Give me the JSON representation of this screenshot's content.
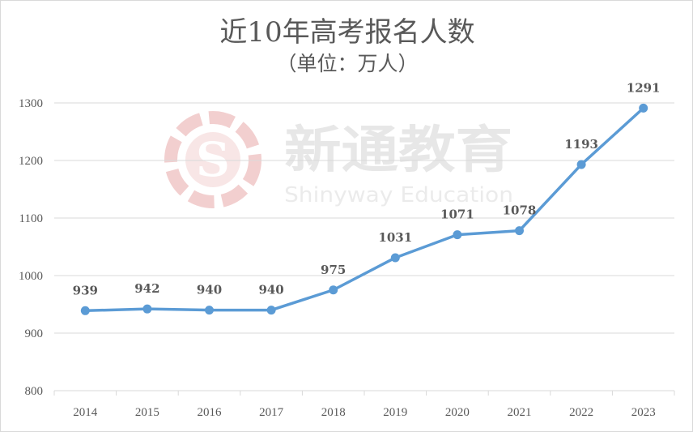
{
  "chart_data": {
    "type": "line",
    "title": "近10年高考报名人数",
    "subtitle": "（单位：万人）",
    "categories": [
      "2014",
      "2015",
      "2016",
      "2017",
      "2018",
      "2019",
      "2020",
      "2021",
      "2022",
      "2023"
    ],
    "values": [
      939,
      942,
      940,
      940,
      975,
      1031,
      1071,
      1078,
      1193,
      1291
    ],
    "data_labels": [
      "939",
      "942",
      "940",
      "940",
      "975",
      "1031",
      "1071",
      "1078",
      "1193",
      "1291"
    ],
    "ylim": [
      800,
      1300
    ],
    "yticks": [
      "800",
      "900",
      "1000",
      "1100",
      "1200",
      "1300"
    ],
    "xlabel": "",
    "ylabel": "",
    "grid": true,
    "legend": "none",
    "colors": {
      "series": "#5b9bd5",
      "grid": "#d9d9d9",
      "text": "#595959",
      "watermark_red": "#e8a8a8",
      "watermark_gray": "#d9d9d9"
    }
  },
  "watermark": {
    "name_cn": "新通教育",
    "name_en": "Shinyway Education",
    "logo_icon": "shinyway-s-logo-icon"
  }
}
